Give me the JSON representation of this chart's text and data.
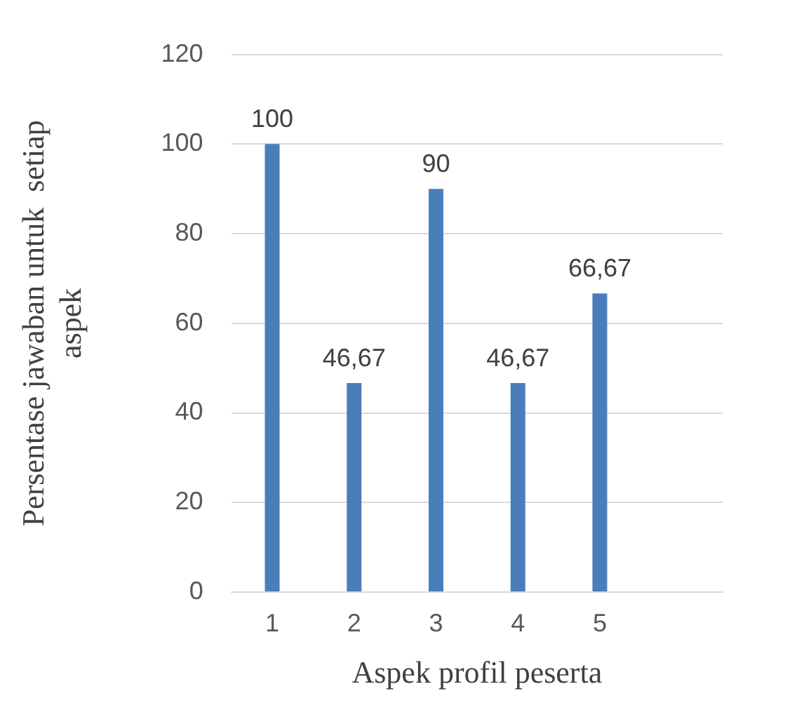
{
  "chart_data": {
    "type": "bar",
    "xlabel": "Aspek profil peserta",
    "ylabel": "Persentase jawaban untuk  setiap\naspek",
    "categories": [
      "1",
      "2",
      "3",
      "4",
      "5",
      null
    ],
    "values": [
      100,
      46.67,
      90,
      46.67,
      66.67,
      null
    ],
    "value_labels": [
      "100",
      "46,67",
      "90",
      "46,67",
      "66,67",
      null
    ],
    "color": "#4a7ebb",
    "ylim": [
      0,
      120
    ],
    "yticks": [
      0,
      20,
      40,
      60,
      80,
      100,
      120
    ],
    "grid": "y",
    "legend": false
  }
}
